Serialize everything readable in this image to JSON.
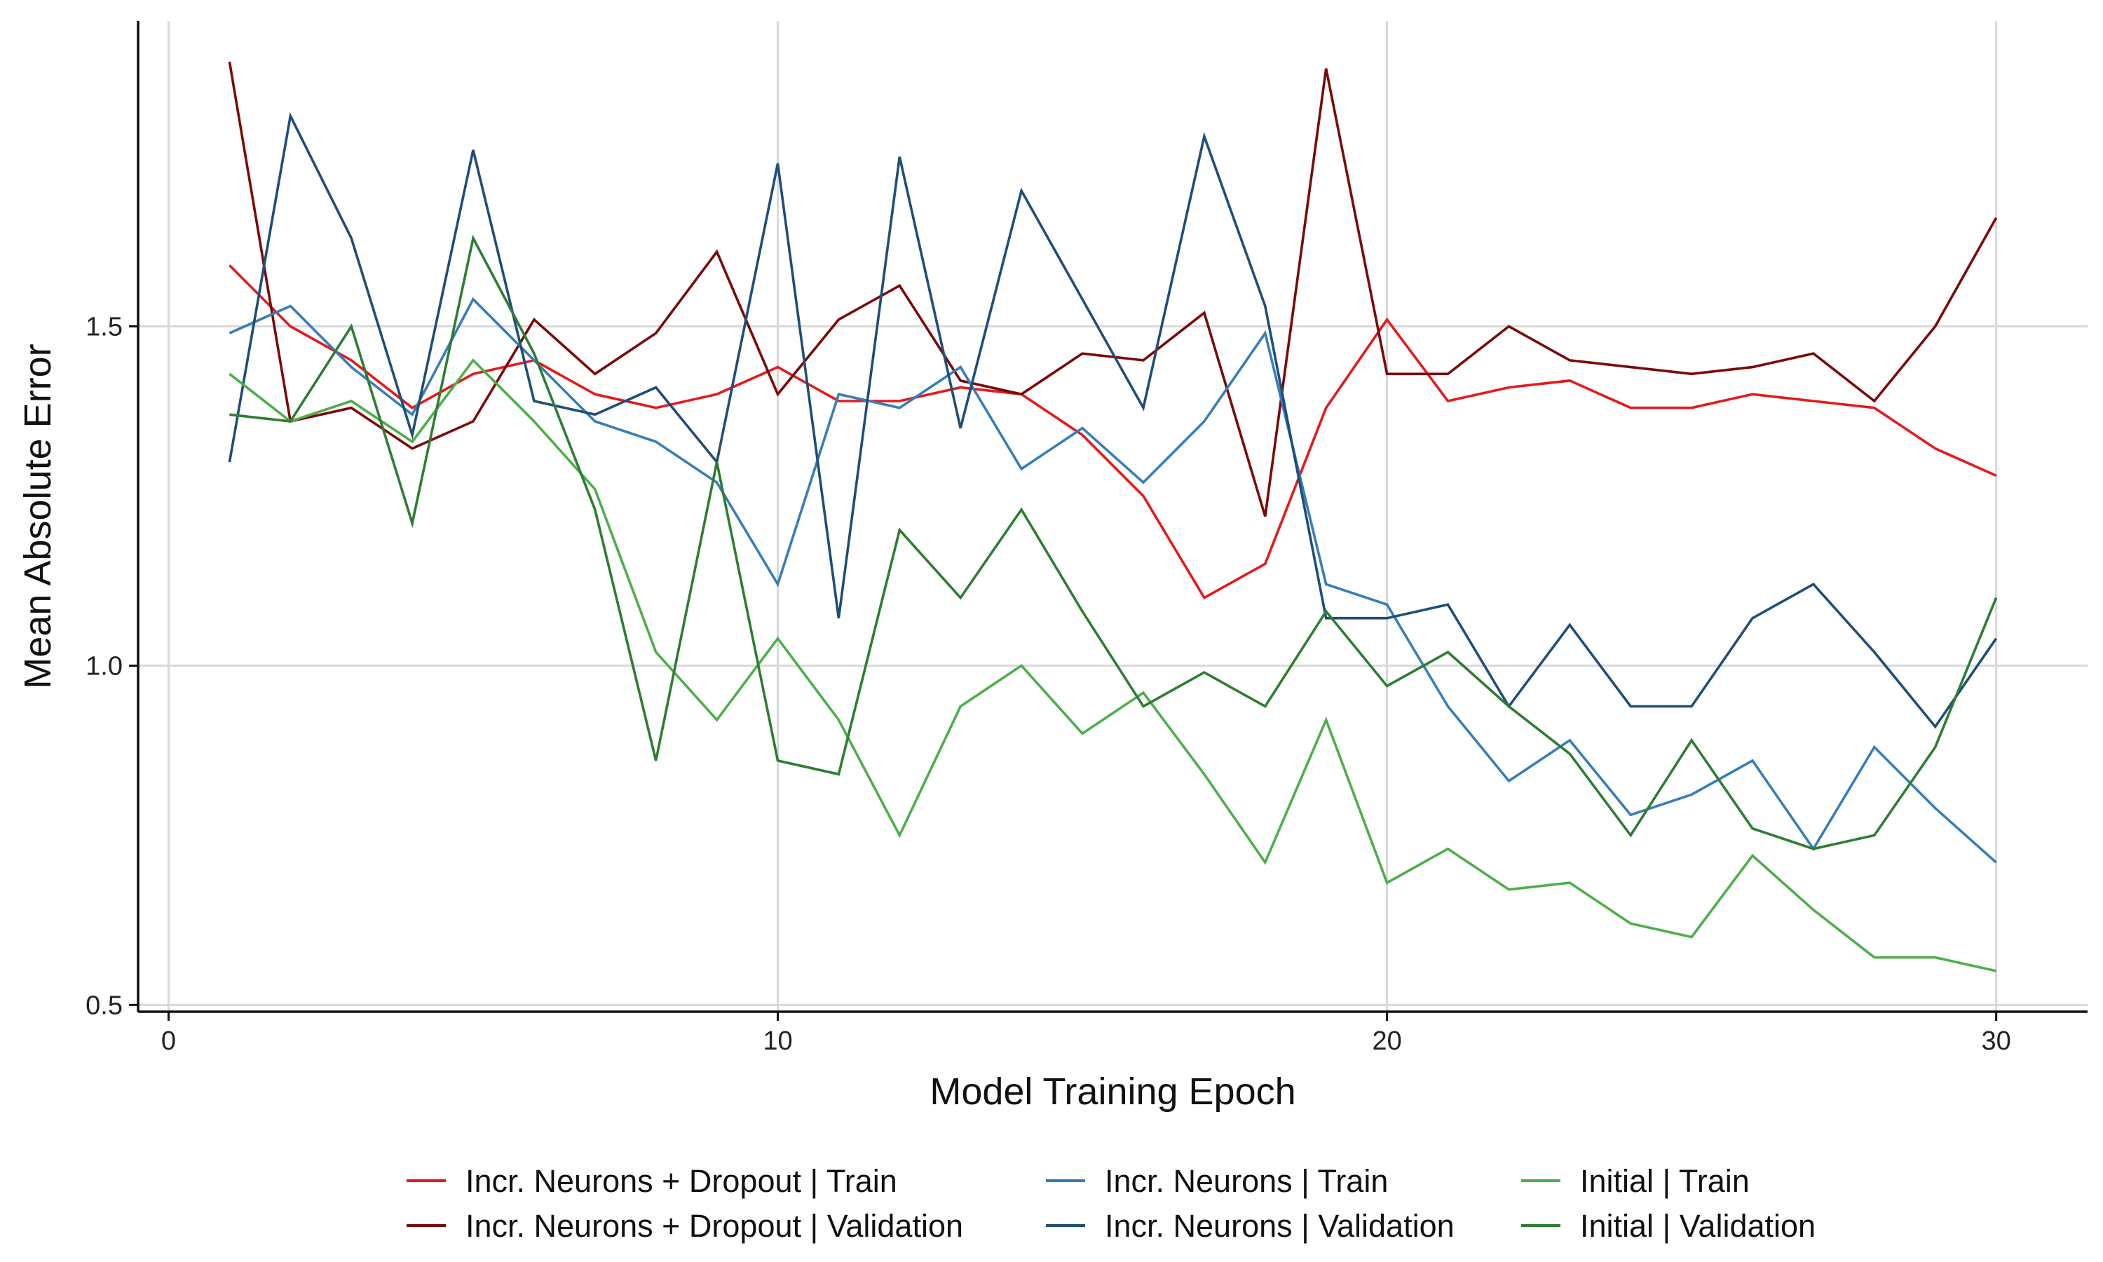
{
  "chart_data": {
    "type": "line",
    "title": "",
    "xlabel": "Model Training Epoch",
    "ylabel": "Mean Absolute Error",
    "xlim": [
      -0.5,
      31.5
    ],
    "ylim": [
      0.49,
      1.95
    ],
    "x_ticks": [
      0,
      10,
      20,
      30
    ],
    "x_tick_labels": [
      "0",
      "10",
      "20",
      "30"
    ],
    "y_ticks": [
      0.5,
      1.0,
      1.5
    ],
    "y_tick_labels": [
      "0.5",
      "1.0",
      "1.5"
    ],
    "grid": true,
    "legend_position": "bottom",
    "x": [
      1,
      2,
      3,
      4,
      5,
      6,
      7,
      8,
      9,
      10,
      11,
      12,
      13,
      14,
      15,
      16,
      17,
      18,
      19,
      20,
      21,
      22,
      23,
      24,
      25,
      26,
      27,
      28,
      29,
      30
    ],
    "series": [
      {
        "name": "Incr. Neurons + Dropout | Train",
        "color": "#e41a1c",
        "values": [
          1.59,
          1.5,
          1.45,
          1.38,
          1.43,
          1.45,
          1.4,
          1.38,
          1.4,
          1.44,
          1.39,
          1.39,
          1.41,
          1.4,
          1.34,
          1.25,
          1.1,
          1.15,
          1.38,
          1.51,
          1.39,
          1.41,
          1.42,
          1.38,
          1.38,
          1.4,
          1.39,
          1.38,
          1.32,
          1.28
        ]
      },
      {
        "name": "Incr. Neurons + Dropout | Validation",
        "color": "#7a0a0a",
        "values": [
          1.89,
          1.36,
          1.38,
          1.32,
          1.36,
          1.51,
          1.43,
          1.49,
          1.61,
          1.4,
          1.51,
          1.56,
          1.42,
          1.4,
          1.46,
          1.45,
          1.52,
          1.22,
          1.88,
          1.43,
          1.43,
          1.5,
          1.45,
          1.44,
          1.43,
          1.44,
          1.46,
          1.39,
          1.5,
          1.66
        ]
      },
      {
        "name": "Incr. Neurons | Train",
        "color": "#377eb8",
        "values": [
          1.49,
          1.53,
          1.44,
          1.37,
          1.54,
          1.45,
          1.36,
          1.33,
          1.27,
          1.12,
          1.4,
          1.38,
          1.44,
          1.29,
          1.35,
          1.27,
          1.36,
          1.49,
          1.12,
          1.09,
          0.94,
          0.83,
          0.89,
          0.78,
          0.81,
          0.86,
          0.73,
          0.88,
          0.79,
          0.71
        ]
      },
      {
        "name": "Incr. Neurons | Validation",
        "color": "#1f4e79",
        "values": [
          1.3,
          1.81,
          1.63,
          1.34,
          1.76,
          1.39,
          1.37,
          1.41,
          1.3,
          1.74,
          1.07,
          1.75,
          1.35,
          1.7,
          1.54,
          1.38,
          1.78,
          1.53,
          1.07,
          1.07,
          1.09,
          0.94,
          1.06,
          0.94,
          0.94,
          1.07,
          1.12,
          1.02,
          0.91,
          1.04
        ]
      },
      {
        "name": "Initial | Train",
        "color": "#4daf4a",
        "values": [
          1.43,
          1.36,
          1.39,
          1.33,
          1.45,
          1.36,
          1.26,
          1.02,
          0.92,
          1.04,
          0.92,
          0.75,
          0.94,
          1.0,
          0.9,
          0.96,
          0.84,
          0.71,
          0.92,
          0.68,
          0.73,
          0.67,
          0.68,
          0.62,
          0.6,
          0.72,
          0.64,
          0.57,
          0.57,
          0.55
        ]
      },
      {
        "name": "Initial | Validation",
        "color": "#2e7d32",
        "values": [
          1.37,
          1.36,
          1.5,
          1.21,
          1.63,
          1.46,
          1.23,
          0.86,
          1.3,
          0.86,
          0.84,
          1.2,
          1.1,
          1.23,
          1.08,
          0.94,
          0.99,
          0.94,
          1.08,
          0.97,
          1.02,
          0.94,
          0.87,
          0.75,
          0.89,
          0.76,
          0.73,
          0.75,
          0.88,
          1.1
        ]
      }
    ]
  }
}
